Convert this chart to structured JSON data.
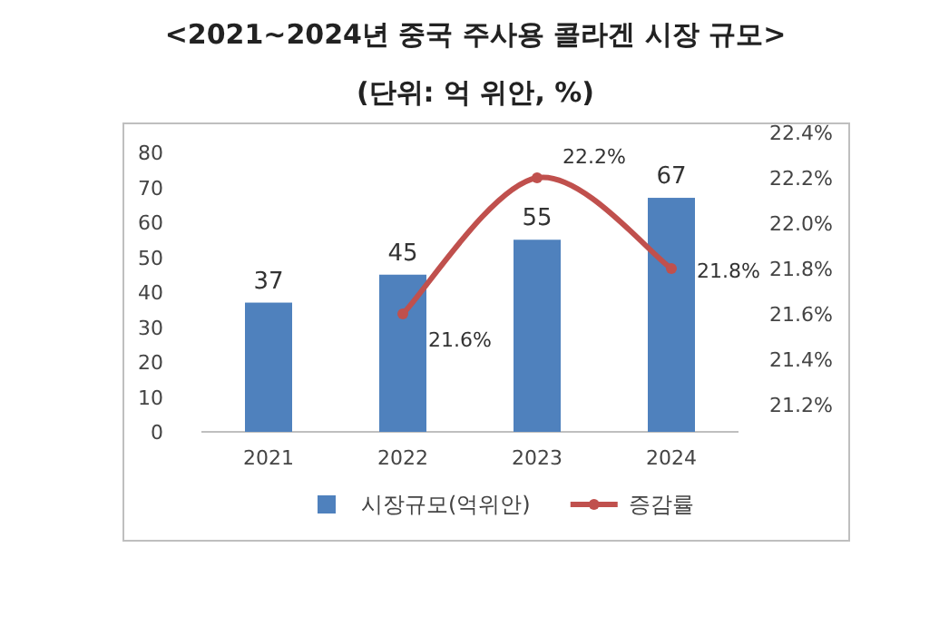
{
  "chart_data": {
    "type": "bar",
    "title": "<2021~2024년 중국 주사용 콜라겐 시장 규모>",
    "subtitle": "(단위: 억 위안, %)",
    "categories": [
      "2021",
      "2022",
      "2023",
      "2024"
    ],
    "series": [
      {
        "name": "시장규모(억위안)",
        "color": "#4f81bd",
        "values": [
          37,
          45,
          55,
          67
        ],
        "value_labels": [
          "37",
          "45",
          "55",
          "67"
        ]
      },
      {
        "name": "증감률",
        "type": "line",
        "axis": "y2",
        "color": "#c0504d",
        "marker": "circle",
        "values": [
          null,
          21.6,
          22.2,
          21.8
        ],
        "value_labels": [
          null,
          "21.6%",
          "22.2%",
          "21.8%"
        ]
      }
    ],
    "ylim": [
      0,
      80
    ],
    "yticks": [
      0,
      10,
      20,
      30,
      40,
      50,
      60,
      70,
      80
    ],
    "y2lim": [
      21.2,
      22.4
    ],
    "y2ticks": [
      {
        "value": 21.2,
        "label": "21.2%"
      },
      {
        "value": 21.4,
        "label": "21.4%"
      },
      {
        "value": 21.6,
        "label": "21.6%"
      },
      {
        "value": 21.8,
        "label": "21.8%"
      },
      {
        "value": 22.0,
        "label": "22.0%"
      },
      {
        "value": 22.2,
        "label": "22.2%"
      },
      {
        "value": 22.4,
        "label": "22.4%"
      }
    ],
    "legend": "bottom",
    "grid": false
  }
}
